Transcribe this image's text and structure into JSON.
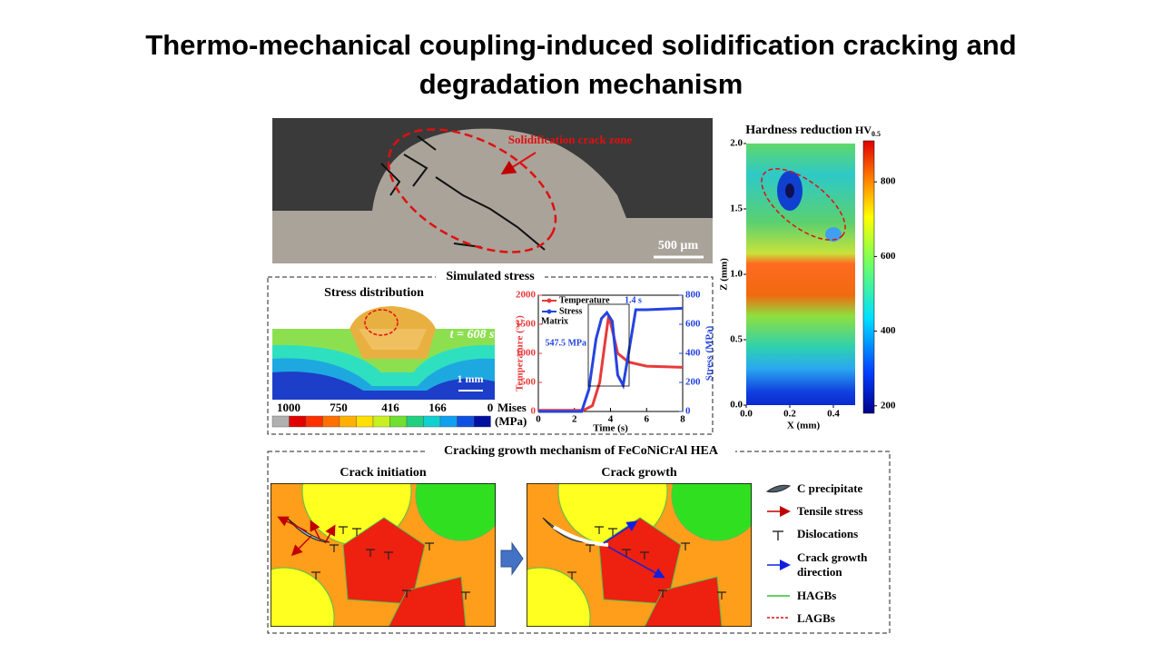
{
  "title": "Thermo-mechanical coupling-induced solidification cracking and degradation mechanism",
  "micrograph": {
    "annotation": "Solidification crack zone",
    "scale_bar": "500 µm"
  },
  "hardness_map": {
    "title": "Hardness reduction",
    "colorbar_unit": "HV",
    "colorbar_unit_subscript": "0.5",
    "xlabel": "X (mm)",
    "ylabel": "Z (mm)",
    "xlim": [
      0,
      0.5
    ],
    "xticks": [
      {
        "value": 0,
        "label": "0.0"
      },
      {
        "value": 0.2,
        "label": "0.2"
      },
      {
        "value": 0.4,
        "label": "0.4"
      }
    ],
    "ylim": [
      0,
      2
    ],
    "yticks": [
      {
        "value": 0,
        "label": "0.0"
      },
      {
        "value": 0.5,
        "label": "0.5"
      },
      {
        "value": 1,
        "label": "1.0"
      },
      {
        "value": 1.5,
        "label": "1.5"
      },
      {
        "value": 2,
        "label": "2.0"
      }
    ],
    "colorbar_lim": [
      180,
      910
    ],
    "colorbar_ticks": [
      200,
      400,
      600,
      800
    ]
  },
  "simulated_stress": {
    "title": "Simulated stress",
    "panel_title": "Stress distribution",
    "time_label": "t = 608 s",
    "scale_bar": "1 mm",
    "colorbar_ticks": [
      1000,
      750,
      416,
      166,
      0
    ],
    "colorbar_label": "Mises",
    "colorbar_unit": "(MPa)",
    "plot": {
      "type": "line",
      "xlabel": "Time (s)",
      "ylabel": "Temperature (°C)",
      "y2label": "Stress (MPa)",
      "xlim": [
        0,
        8
      ],
      "xticks": [
        0,
        2,
        4,
        6,
        8
      ],
      "ylim": [
        0,
        2000
      ],
      "yticks": [
        0,
        500,
        1000,
        1500,
        2000
      ],
      "y2lim": [
        0,
        800
      ],
      "y2ticks": [
        0,
        200,
        400,
        600,
        800
      ],
      "series": [
        {
          "name": "Temperature",
          "color": "#e83a3a",
          "x": [
            0,
            2.5,
            3,
            3.4,
            3.7,
            3.9,
            4.1,
            4.4,
            5,
            6,
            8
          ],
          "values": [
            20,
            20,
            100,
            500,
            1200,
            1650,
            1400,
            1000,
            850,
            780,
            760
          ]
        },
        {
          "name": "Stress",
          "color": "#2444e0",
          "axis": "y2",
          "x": [
            0,
            2.4,
            2.8,
            3.2,
            3.5,
            3.8,
            4.1,
            4.4,
            4.7,
            5,
            5.4,
            6,
            8
          ],
          "values": [
            0,
            0,
            150,
            500,
            640,
            680,
            620,
            250,
            180,
            400,
            700,
            700,
            710
          ]
        }
      ],
      "annotations": [
        "1.4 s",
        "Matrix",
        "547.5 MPa"
      ]
    }
  },
  "mechanism": {
    "title": "Cracking growth mechanism of FeCoNiCrAl HEA",
    "panels": [
      "Crack initiation",
      "Crack growth"
    ],
    "legend": [
      "C precipitate",
      "Tensile stress",
      "Dislocations",
      "Crack growth direction",
      "HAGBs",
      "LAGBs"
    ]
  }
}
